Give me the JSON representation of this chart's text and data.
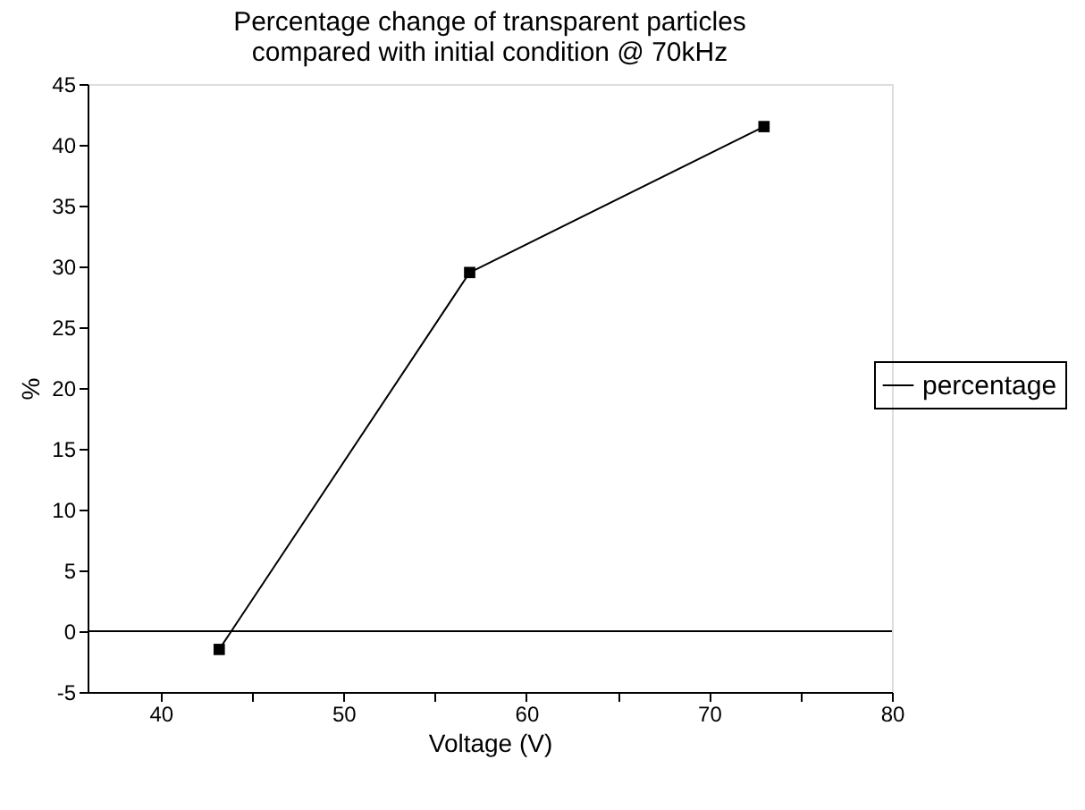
{
  "chart_data": {
    "type": "line",
    "title": "Percentage change of transparent particles\ncompared with initial condition @ 70kHz",
    "xlabel": "Voltage (V)",
    "ylabel": "%",
    "x": [
      43.2,
      56.9,
      73.0
    ],
    "series": [
      {
        "name": "percentage",
        "color": "#000000",
        "values": [
          -1.5,
          29.5,
          41.5
        ]
      }
    ],
    "xlim": [
      36,
      80
    ],
    "xticks": [
      40,
      {
        "value": 45,
        "label": null
      },
      50,
      {
        "value": 55,
        "label": null
      },
      60,
      {
        "value": 65,
        "label": null
      },
      70,
      {
        "value": 75,
        "label": null
      },
      80
    ],
    "ylim": [
      -5,
      45
    ],
    "yticks": [
      -5,
      0,
      5,
      10,
      15,
      20,
      25,
      30,
      35,
      40,
      45
    ],
    "ref_lines": [
      {
        "axis": "y",
        "value": 0,
        "color": "#000000"
      }
    ],
    "marker": "square",
    "line_style": "solid",
    "grid": false,
    "legend": "right"
  }
}
